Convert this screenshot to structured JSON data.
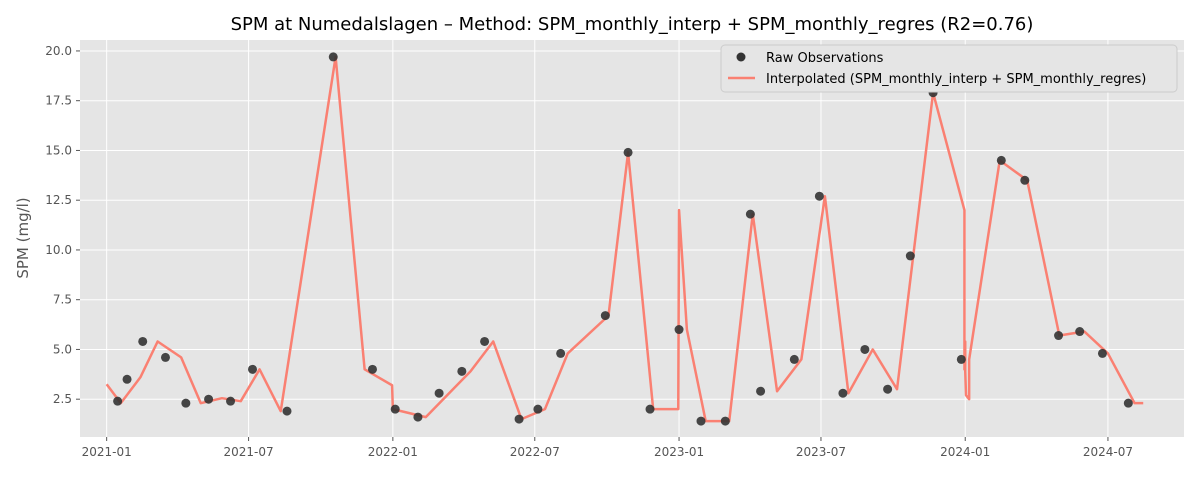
{
  "chart_data": {
    "type": "line",
    "title": "SPM at Numedalslagen – Method: SPM_monthly_interp + SPM_monthly_regres (R2=0.76)",
    "xlabel": "",
    "ylabel": "SPM (mg/l)",
    "xlim": [
      "2020-11-28",
      "2024-10-06"
    ],
    "ylim": [
      0.6,
      20.55
    ],
    "x_ticks": [
      "2021-01",
      "2021-07",
      "2022-01",
      "2022-07",
      "2023-01",
      "2023-07",
      "2024-01",
      "2024-07"
    ],
    "y_ticks": [
      "2.5",
      "5.0",
      "7.5",
      "10.0",
      "12.5",
      "15.0",
      "17.5",
      "20.0"
    ],
    "grid": true,
    "legend_position": "top-right",
    "colors": {
      "background": "#e5e5e5",
      "grid": "#ffffff",
      "observations": "#333333",
      "interpolated": "#fa8072",
      "text": "#555555",
      "title": "#000000"
    },
    "series": [
      {
        "name": "Raw Observations",
        "kind": "scatter",
        "points": [
          [
            "2021-01-15",
            2.4
          ],
          [
            "2021-01-27",
            3.5
          ],
          [
            "2021-02-16",
            5.4
          ],
          [
            "2021-03-17",
            4.6
          ],
          [
            "2021-04-12",
            2.3
          ],
          [
            "2021-05-11",
            2.5
          ],
          [
            "2021-06-08",
            2.4
          ],
          [
            "2021-07-06",
            4.0
          ],
          [
            "2021-08-19",
            1.9
          ],
          [
            "2021-10-17",
            19.7
          ],
          [
            "2021-12-06",
            4.0
          ],
          [
            "2022-01-04",
            2.0
          ],
          [
            "2022-02-02",
            1.6
          ],
          [
            "2022-03-01",
            2.8
          ],
          [
            "2022-03-30",
            3.9
          ],
          [
            "2022-04-28",
            5.4
          ],
          [
            "2022-06-11",
            1.5
          ],
          [
            "2022-07-05",
            2.0
          ],
          [
            "2022-08-03",
            4.8
          ],
          [
            "2022-09-29",
            6.7
          ],
          [
            "2022-10-28",
            14.9
          ],
          [
            "2022-11-25",
            2.0
          ],
          [
            "2023-01-01",
            6.0
          ],
          [
            "2023-01-29",
            1.4
          ],
          [
            "2023-03-01",
            1.4
          ],
          [
            "2023-04-02",
            11.8
          ],
          [
            "2023-04-15",
            2.9
          ],
          [
            "2023-05-28",
            4.5
          ],
          [
            "2023-06-29",
            12.7
          ],
          [
            "2023-07-29",
            2.8
          ],
          [
            "2023-08-26",
            5.0
          ],
          [
            "2023-09-24",
            3.0
          ],
          [
            "2023-10-23",
            9.7
          ],
          [
            "2023-11-21",
            17.9
          ],
          [
            "2023-12-27",
            4.5
          ],
          [
            "2024-02-16",
            14.5
          ],
          [
            "2024-03-17",
            13.5
          ],
          [
            "2024-04-29",
            5.7
          ],
          [
            "2024-05-26",
            5.9
          ],
          [
            "2024-06-24",
            4.8
          ],
          [
            "2024-07-27",
            2.3
          ]
        ]
      },
      {
        "name": "Interpolated (SPM_monthly_interp + SPM_monthly_regres)",
        "kind": "line",
        "points": [
          [
            "2021-01-01",
            3.25
          ],
          [
            "2021-01-19",
            2.3
          ],
          [
            "2021-02-13",
            3.6
          ],
          [
            "2021-03-07",
            5.4
          ],
          [
            "2021-04-06",
            4.6
          ],
          [
            "2021-05-01",
            2.3
          ],
          [
            "2021-05-28",
            2.55
          ],
          [
            "2021-06-21",
            2.4
          ],
          [
            "2021-07-15",
            4.0
          ],
          [
            "2021-08-11",
            1.9
          ],
          [
            "2021-10-20",
            19.7
          ],
          [
            "2021-11-26",
            4.0
          ],
          [
            "2021-12-31",
            3.2
          ],
          [
            "2022-01-01",
            2.0
          ],
          [
            "2022-02-12",
            1.6
          ],
          [
            "2022-04-10",
            3.9
          ],
          [
            "2022-05-09",
            5.4
          ],
          [
            "2022-06-14",
            1.5
          ],
          [
            "2022-07-14",
            2.0
          ],
          [
            "2022-08-12",
            4.8
          ],
          [
            "2022-10-03",
            6.7
          ],
          [
            "2022-10-28",
            14.9
          ],
          [
            "2022-11-29",
            2.0
          ],
          [
            "2022-12-31",
            2.0
          ],
          [
            "2023-01-01",
            12.0
          ],
          [
            "2023-01-11",
            6.0
          ],
          [
            "2023-02-04",
            1.4
          ],
          [
            "2023-03-06",
            1.4
          ],
          [
            "2023-04-05",
            11.8
          ],
          [
            "2023-05-06",
            2.9
          ],
          [
            "2023-06-06",
            4.5
          ],
          [
            "2023-07-06",
            12.7
          ],
          [
            "2023-08-05",
            2.8
          ],
          [
            "2023-09-05",
            5.0
          ],
          [
            "2023-10-06",
            3.0
          ],
          [
            "2023-11-21",
            17.9
          ],
          [
            "2023-12-31",
            12.0
          ],
          [
            "2023-12-31",
            4.0
          ],
          [
            "2024-01-01",
            5.4
          ],
          [
            "2024-01-01",
            3.9
          ],
          [
            "2024-01-02",
            2.7
          ],
          [
            "2024-01-06",
            2.5
          ],
          [
            "2024-01-06",
            4.5
          ],
          [
            "2024-02-14",
            14.5
          ],
          [
            "2024-03-20",
            13.5
          ],
          [
            "2024-04-30",
            5.7
          ],
          [
            "2024-06-01",
            5.9
          ],
          [
            "2024-07-01",
            4.8
          ],
          [
            "2024-08-04",
            2.3
          ],
          [
            "2024-08-15",
            2.3
          ]
        ]
      }
    ]
  }
}
